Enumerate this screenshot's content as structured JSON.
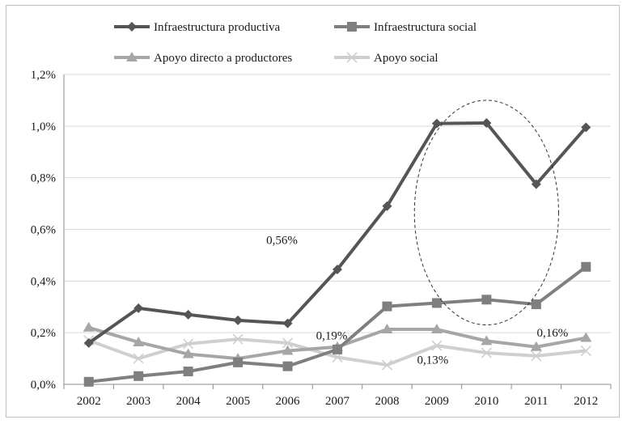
{
  "chart_data": {
    "type": "line",
    "categories": [
      "2002",
      "2003",
      "2004",
      "2005",
      "2006",
      "2007",
      "2008",
      "2009",
      "2010",
      "2011",
      "2012"
    ],
    "ylim": [
      0,
      1.2
    ],
    "yticks": [
      "0,0%",
      "0,2%",
      "0,4%",
      "0,6%",
      "0,8%",
      "1,0%",
      "1,2%"
    ],
    "grid": true,
    "legend_position": "top",
    "series": [
      {
        "name": "Infraestructura productiva",
        "color": "#555555",
        "marker": "diamond",
        "values": [
          0.16,
          0.295,
          0.27,
          0.248,
          0.236,
          0.445,
          0.69,
          1.01,
          1.012,
          0.775,
          0.995
        ]
      },
      {
        "name": "Infraestructura social",
        "color": "#7f7f7f",
        "marker": "square",
        "values": [
          0.01,
          0.032,
          0.05,
          0.085,
          0.07,
          0.135,
          0.302,
          0.315,
          0.328,
          0.31,
          0.455
        ]
      },
      {
        "name": "Apoyo directo a productores",
        "color": "#a6a6a6",
        "marker": "triangle",
        "values": [
          0.22,
          0.163,
          0.117,
          0.1,
          0.13,
          0.145,
          0.213,
          0.213,
          0.168,
          0.145,
          0.18
        ]
      },
      {
        "name": "Apoyo social",
        "color": "#cfcfcf",
        "marker": "x",
        "values": [
          0.17,
          0.1,
          0.157,
          0.175,
          0.16,
          0.105,
          0.075,
          0.15,
          0.122,
          0.11,
          0.13
        ]
      }
    ],
    "annotations": [
      {
        "text": "0,56%",
        "x": "2006",
        "y": 0.56
      },
      {
        "text": "0,19%",
        "x": "2007",
        "y": 0.19
      },
      {
        "text": "0,13%",
        "x": "2009",
        "y": 0.095
      },
      {
        "text": "0,16%",
        "x": "2011",
        "y": 0.2
      }
    ],
    "highlight": {
      "shape": "dashed-ellipse",
      "x_from": "2009",
      "x_to": "2011",
      "y_from": 0.23,
      "y_to": 1.1
    }
  }
}
